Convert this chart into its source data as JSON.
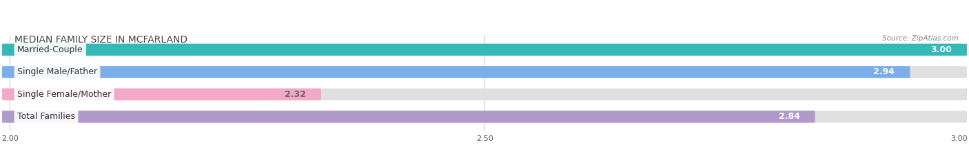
{
  "title": "MEDIAN FAMILY SIZE IN MCFARLAND",
  "source": "Source: ZipAtlas.com",
  "categories": [
    "Married-Couple",
    "Single Male/Father",
    "Single Female/Mother",
    "Total Families"
  ],
  "values": [
    3.0,
    2.94,
    2.32,
    2.84
  ],
  "bar_colors": [
    "#35b8b8",
    "#7baee8",
    "#f4a8c8",
    "#b09acc"
  ],
  "value_label_colors": [
    "white",
    "white",
    "#666666",
    "white"
  ],
  "xlim": [
    2.0,
    3.0
  ],
  "xticks": [
    2.0,
    2.5,
    3.0
  ],
  "xtick_labels": [
    "2.00",
    "2.50",
    "3.00"
  ],
  "title_fontsize": 10,
  "source_fontsize": 7.5,
  "bar_height": 0.52,
  "label_fontsize": 9,
  "value_fontsize": 9,
  "background_color": "#ffffff",
  "bar_bg_color": "#e0e0e0",
  "grid_color": "#cccccc"
}
